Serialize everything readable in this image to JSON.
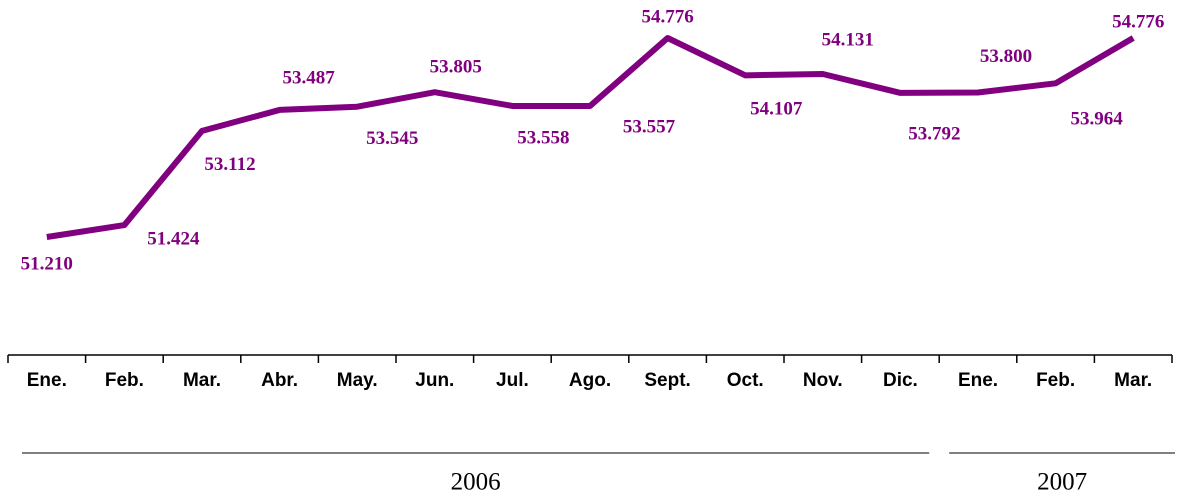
{
  "chart_data": {
    "type": "line",
    "categories": [
      "Ene.",
      "Feb.",
      "Mar.",
      "Abr.",
      "May.",
      "Jun.",
      "Jul.",
      "Ago.",
      "Sept.",
      "Oct.",
      "Nov.",
      "Dic.",
      "Ene.",
      "Feb.",
      "Mar."
    ],
    "values": [
      51210,
      51424,
      53112,
      53487,
      53545,
      53805,
      53558,
      53557,
      54776,
      54107,
      54131,
      53792,
      53800,
      53964,
      54776
    ],
    "value_labels": [
      "51.210",
      "51.424",
      "53.112",
      "53.487",
      "53.545",
      "53.805",
      "53.558",
      "53.557",
      "54.776",
      "54.107",
      "54.131",
      "53.792",
      "53.800",
      "53.964",
      "54.776"
    ],
    "color": "#800080",
    "groups": [
      {
        "label": "2006",
        "span": 12
      },
      {
        "label": "2007",
        "span": 3
      }
    ]
  }
}
